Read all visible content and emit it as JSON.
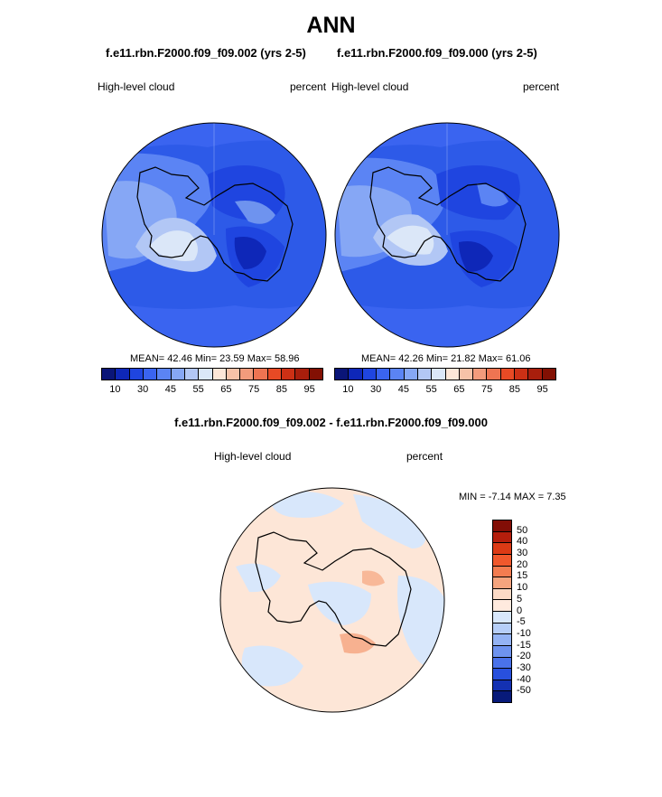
{
  "title": "ANN",
  "panels": [
    {
      "id": "panel1",
      "case_title": "f.e11.rbn.F2000.f09_f09.002 (yrs 2-5)",
      "variable": "High-level cloud",
      "units": "percent",
      "stats": {
        "mean_label": "MEAN=",
        "mean": "42.46",
        "min_label": "Min=",
        "min": "23.59",
        "max_label": "Max=",
        "max": "58.96"
      }
    },
    {
      "id": "panel2",
      "case_title": "f.e11.rbn.F2000.f09_f09.000 (yrs 2-5)",
      "variable": "High-level cloud",
      "units": "percent",
      "stats": {
        "mean_label": "MEAN=",
        "mean": "42.26",
        "min_label": "Min=",
        "min": "21.82",
        "max_label": "Max=",
        "max": "61.06"
      }
    }
  ],
  "diff_panel": {
    "title": "f.e11.rbn.F2000.f09_f09.002 - f.e11.rbn.F2000.f09_f09.000",
    "variable": "High-level cloud",
    "units": "percent",
    "minmax": {
      "min_label": "MIN =",
      "min": "-7.14",
      "max_label": "MAX =",
      "max": "7.35"
    }
  },
  "colorbar_abs": {
    "colors": [
      "#0a1578",
      "#0e27b8",
      "#1f45e0",
      "#3a64f0",
      "#5b84f4",
      "#86a7f5",
      "#b2c7f5",
      "#dbe7f8",
      "#fde6d7",
      "#f7c2a8",
      "#f29b7c",
      "#ee7452",
      "#e84a25",
      "#cc3015",
      "#a81e0c",
      "#821003"
    ],
    "tick_labels": [
      "10",
      "30",
      "45",
      "55",
      "65",
      "75",
      "85",
      "95"
    ]
  },
  "colorbar_diff": {
    "colors": [
      "#820e06",
      "#b51e0c",
      "#dc3a15",
      "#f0582c",
      "#f37c50",
      "#f5a47e",
      "#fcdac6",
      "#ffeade",
      "#d8e7fb",
      "#b6cef8",
      "#94b3f4",
      "#6e93ef",
      "#4a72ea",
      "#2850dd",
      "#1431b2",
      "#081a7a"
    ],
    "tick_labels": [
      "50",
      "40",
      "30",
      "20",
      "15",
      "10",
      "5",
      "0",
      "-5",
      "-10",
      "-15",
      "-20",
      "-30",
      "-40",
      "-50"
    ]
  },
  "colors": {
    "map_base_abs": "#2d5ae8",
    "map_base_diff": "#fde6d7"
  }
}
